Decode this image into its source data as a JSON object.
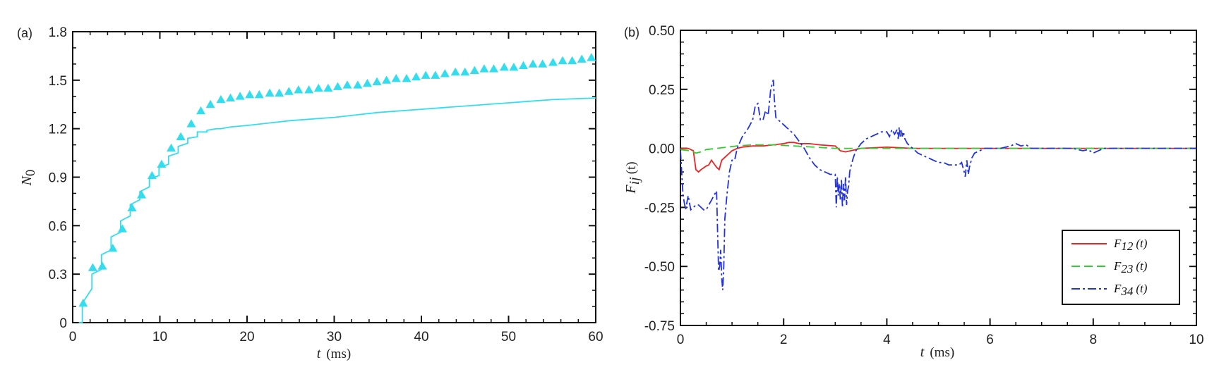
{
  "chart_data": [
    {
      "type": "line",
      "panel_label": "(a)",
      "xlabel": "t (ms)",
      "ylabel": "N0",
      "xlim": [
        0,
        60
      ],
      "ylim": [
        0,
        1.8
      ],
      "xticks": [
        "0",
        "10",
        "20",
        "30",
        "40",
        "50",
        "60"
      ],
      "yticks": [
        "0",
        "0.3",
        "0.6",
        "0.9",
        "1.2",
        "1.5",
        "1.8"
      ],
      "series": [
        {
          "name": "triangles",
          "marker": "triangle",
          "color": "#33ddee",
          "x": [
            1.2,
            2.3,
            3.4,
            4.6,
            5.7,
            6.8,
            7.9,
            9.1,
            10.2,
            11.3,
            12.4,
            13.6,
            14.7,
            15.8,
            17.0,
            18.1,
            19.2,
            20.3,
            21.4,
            22.6,
            23.7,
            24.8,
            25.9,
            27.1,
            28.2,
            29.3,
            30.4,
            31.5,
            32.7,
            33.8,
            34.9,
            36.0,
            37.1,
            38.3,
            39.4,
            40.5,
            41.6,
            42.7,
            43.9,
            45.0,
            46.1,
            47.2,
            48.3,
            49.5,
            50.6,
            51.7,
            52.8,
            53.9,
            55.1,
            56.2,
            57.3,
            58.4,
            59.5
          ],
          "y": [
            0.12,
            0.34,
            0.35,
            0.46,
            0.58,
            0.71,
            0.79,
            0.91,
            0.98,
            1.08,
            1.15,
            1.23,
            1.31,
            1.35,
            1.38,
            1.39,
            1.4,
            1.41,
            1.41,
            1.42,
            1.42,
            1.43,
            1.44,
            1.44,
            1.45,
            1.45,
            1.46,
            1.47,
            1.47,
            1.48,
            1.49,
            1.5,
            1.51,
            1.51,
            1.52,
            1.53,
            1.53,
            1.54,
            1.55,
            1.55,
            1.56,
            1.57,
            1.57,
            1.58,
            1.58,
            1.59,
            1.6,
            1.6,
            1.61,
            1.62,
            1.62,
            1.63,
            1.64
          ]
        },
        {
          "name": "solid",
          "marker": "none",
          "color": "#33ddee",
          "x": [
            0.7,
            1.1,
            1.1,
            2.2,
            2.2,
            3.3,
            3.3,
            4.4,
            4.4,
            5.5,
            5.5,
            6.6,
            6.6,
            7.7,
            7.7,
            8.8,
            8.8,
            9.9,
            9.9,
            11.0,
            11.0,
            12.1,
            12.1,
            13.2,
            13.2,
            14.3,
            14.3,
            15.4,
            15.4,
            16.5,
            17.0,
            18.0,
            20.0,
            25.0,
            30.0,
            35.0,
            40.0,
            45.0,
            50.0,
            55.0,
            60.0
          ],
          "y": [
            0.0,
            0.0,
            0.12,
            0.21,
            0.3,
            0.33,
            0.42,
            0.45,
            0.53,
            0.56,
            0.63,
            0.66,
            0.73,
            0.76,
            0.81,
            0.84,
            0.89,
            0.91,
            0.96,
            0.98,
            1.03,
            1.05,
            1.09,
            1.11,
            1.14,
            1.15,
            1.18,
            1.18,
            1.19,
            1.2,
            1.2,
            1.21,
            1.22,
            1.25,
            1.27,
            1.3,
            1.32,
            1.34,
            1.36,
            1.38,
            1.39
          ]
        }
      ]
    },
    {
      "type": "line",
      "panel_label": "(b)",
      "xlabel": "t (ms)",
      "ylabel": "Fij(t)",
      "xlim": [
        0,
        10
      ],
      "ylim": [
        -0.75,
        0.5
      ],
      "xticks": [
        "0",
        "2",
        "4",
        "6",
        "8",
        "10"
      ],
      "yticks": [
        "-0.75",
        "-0.50",
        "-0.25",
        "0.00",
        "0.25",
        "0.50"
      ],
      "legend_position": "lower-right",
      "series": [
        {
          "name": "F12 (t)",
          "legend_main": "F",
          "legend_sub": "12",
          "legend_tail": "(t)",
          "style": "solid",
          "color": "#ee2222",
          "x": [
            0,
            0.15,
            0.25,
            0.3,
            0.35,
            0.4,
            0.5,
            0.55,
            0.6,
            0.7,
            0.75,
            0.8,
            0.9,
            1.0,
            1.1,
            1.2,
            1.4,
            1.6,
            1.8,
            2.0,
            2.1,
            2.2,
            2.3,
            2.5,
            2.7,
            3.0,
            3.1,
            3.2,
            3.3,
            3.5,
            4.0,
            4.5,
            5.0,
            5.5,
            6.0,
            7.0,
            8.0,
            9.0,
            10.0
          ],
          "y": [
            0,
            0,
            -0.01,
            -0.09,
            -0.1,
            -0.09,
            -0.075,
            -0.07,
            -0.05,
            -0.08,
            -0.09,
            -0.05,
            -0.03,
            -0.01,
            0.0,
            0.005,
            0.01,
            0.01,
            0.015,
            0.02,
            0.025,
            0.025,
            0.02,
            0.02,
            0.015,
            0.01,
            -0.01,
            -0.015,
            -0.01,
            0.0,
            0.005,
            0.0,
            0.0,
            0.0,
            0.0,
            0.0,
            0.0,
            0.0,
            0.0
          ]
        },
        {
          "name": "F23 (t)",
          "legend_main": "F",
          "legend_sub": "23",
          "legend_tail": "(t)",
          "style": "dashed",
          "color": "#33cc33",
          "x": [
            0,
            0.2,
            0.3,
            0.4,
            0.5,
            0.7,
            0.9,
            1.1,
            1.4,
            1.8,
            2.2,
            2.6,
            3.0,
            3.5,
            4.0,
            5.0,
            6.0,
            7.0,
            8.0,
            9.0,
            10.0
          ],
          "y": [
            -0.005,
            -0.01,
            -0.02,
            -0.015,
            -0.005,
            0.0,
            0.005,
            0.01,
            0.015,
            0.015,
            0.01,
            0.005,
            0.0,
            0.0,
            0.0,
            0.0,
            0.0,
            0.0,
            0.0,
            0.0,
            0.0
          ]
        },
        {
          "name": "F34 (t)",
          "legend_main": "F",
          "legend_sub": "34",
          "legend_tail": "(t)",
          "style": "dashdot",
          "color": "#2233dd",
          "x": [
            0,
            0.05,
            0.1,
            0.15,
            0.2,
            0.25,
            0.3,
            0.35,
            0.4,
            0.45,
            0.5,
            0.55,
            0.6,
            0.65,
            0.7,
            0.72,
            0.74,
            0.76,
            0.78,
            0.8,
            0.82,
            0.84,
            0.86,
            0.88,
            0.9,
            0.95,
            1.0,
            1.05,
            1.1,
            1.2,
            1.3,
            1.4,
            1.45,
            1.5,
            1.55,
            1.6,
            1.65,
            1.7,
            1.75,
            1.8,
            1.82,
            1.85,
            1.9,
            2.0,
            2.1,
            2.2,
            2.3,
            2.4,
            2.5,
            2.6,
            2.7,
            2.8,
            2.9,
            3.0,
            3.02,
            3.04,
            3.06,
            3.08,
            3.1,
            3.12,
            3.14,
            3.16,
            3.18,
            3.2,
            3.22,
            3.24,
            3.26,
            3.28,
            3.3,
            3.35,
            3.4,
            3.5,
            3.6,
            3.7,
            3.8,
            3.9,
            4.0,
            4.05,
            4.1,
            4.15,
            4.2,
            4.22,
            4.24,
            4.26,
            4.28,
            4.3,
            4.32,
            4.35,
            4.4,
            4.5,
            4.6,
            4.7,
            4.8,
            4.9,
            5.0,
            5.1,
            5.2,
            5.3,
            5.4,
            5.45,
            5.5,
            5.52,
            5.55,
            5.58,
            5.6,
            5.65,
            5.7,
            5.8,
            5.9,
            6.0,
            6.2,
            6.4,
            6.5,
            6.6,
            6.7,
            6.8,
            7.0,
            7.2,
            7.4,
            7.6,
            7.8,
            7.9,
            8.0,
            8.2,
            8.5,
            9.0,
            9.5,
            10.0
          ],
          "y": [
            -0.01,
            -0.2,
            -0.26,
            -0.2,
            -0.26,
            -0.25,
            -0.24,
            -0.24,
            -0.25,
            -0.26,
            -0.26,
            -0.24,
            -0.22,
            -0.2,
            -0.18,
            -0.35,
            -0.52,
            -0.5,
            -0.43,
            -0.55,
            -0.6,
            -0.5,
            -0.3,
            -0.25,
            -0.2,
            -0.1,
            -0.05,
            -0.05,
            0.0,
            0.05,
            0.08,
            0.12,
            0.18,
            0.19,
            0.12,
            0.12,
            0.16,
            0.14,
            0.25,
            0.29,
            0.21,
            0.13,
            0.12,
            0.1,
            0.08,
            0.06,
            0.03,
            0.0,
            -0.04,
            -0.07,
            -0.09,
            -0.1,
            -0.11,
            -0.11,
            -0.25,
            -0.12,
            -0.2,
            -0.15,
            -0.22,
            -0.13,
            -0.25,
            -0.15,
            -0.22,
            -0.12,
            -0.24,
            -0.18,
            -0.16,
            -0.1,
            -0.08,
            -0.04,
            -0.01,
            0.02,
            0.04,
            0.05,
            0.06,
            0.07,
            0.07,
            0.05,
            0.08,
            0.06,
            0.08,
            0.04,
            0.09,
            0.05,
            0.08,
            0.05,
            0.07,
            0.04,
            0.02,
            0.0,
            -0.02,
            -0.03,
            -0.04,
            -0.05,
            -0.06,
            -0.06,
            -0.07,
            -0.07,
            -0.07,
            -0.06,
            -0.1,
            -0.12,
            -0.05,
            -0.11,
            -0.08,
            -0.04,
            -0.02,
            -0.01,
            0.0,
            0.0,
            0.0,
            0.01,
            0.02,
            0.01,
            0.015,
            0.0,
            0.0,
            0.0,
            0.0,
            0.0,
            -0.01,
            -0.005,
            -0.02,
            0.0,
            0.0,
            0.0,
            0.0,
            0.0
          ]
        }
      ]
    }
  ]
}
